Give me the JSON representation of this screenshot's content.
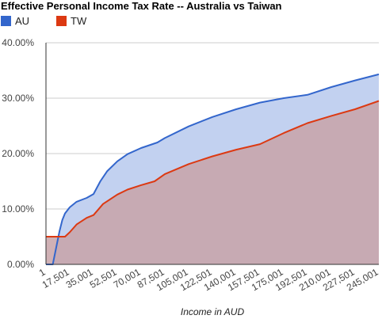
{
  "chart_data": {
    "type": "area",
    "title": "Effective Personal Income Tax Rate -- Australia vs Taiwan",
    "xlabel": "Income in AUD",
    "ylabel": "",
    "ylim": [
      0,
      0.4
    ],
    "yticks": [
      0,
      0.1,
      0.2,
      0.3,
      0.4
    ],
    "ytick_labels": [
      "0.00%",
      "10.00%",
      "20.00%",
      "30.00%",
      "40.00%"
    ],
    "grid": true,
    "legend": "top-left",
    "x": [
      1,
      17501,
      35001,
      52501,
      70001,
      87501,
      105001,
      122501,
      140001,
      157501,
      175001,
      192501,
      210001,
      227501,
      245001
    ],
    "x_tick_labels": [
      "1",
      "17,501",
      "35,001",
      "52,501",
      "70,001",
      "87,501",
      "105,001",
      "122,501",
      "140,001",
      "157,501",
      "175,001",
      "192,501",
      "210,001",
      "227,501",
      "245,001"
    ],
    "xlim": [
      1,
      245001
    ],
    "series": [
      {
        "name": "AU",
        "color": "#3366cc",
        "fill": "#c2d1f0",
        "points": [
          [
            1,
            0
          ],
          [
            5001,
            0
          ],
          [
            10001,
            0.06
          ],
          [
            12001,
            0.08
          ],
          [
            14001,
            0.092
          ],
          [
            17501,
            0.103
          ],
          [
            22501,
            0.113
          ],
          [
            30001,
            0.12
          ],
          [
            35001,
            0.127
          ],
          [
            40001,
            0.15
          ],
          [
            45001,
            0.168
          ],
          [
            52501,
            0.186
          ],
          [
            60001,
            0.199
          ],
          [
            70001,
            0.21
          ],
          [
            82001,
            0.22
          ],
          [
            87501,
            0.228
          ],
          [
            105001,
            0.249
          ],
          [
            122501,
            0.266
          ],
          [
            140001,
            0.28
          ],
          [
            157501,
            0.292
          ],
          [
            175001,
            0.3
          ],
          [
            192501,
            0.306
          ],
          [
            210001,
            0.32
          ],
          [
            227501,
            0.332
          ],
          [
            245001,
            0.343
          ]
        ]
      },
      {
        "name": "TW",
        "color": "#dc3912",
        "fill": "#c8a3a8",
        "points": [
          [
            1,
            0.05
          ],
          [
            10001,
            0.05
          ],
          [
            14001,
            0.05
          ],
          [
            17501,
            0.058
          ],
          [
            22501,
            0.072
          ],
          [
            30001,
            0.084
          ],
          [
            35001,
            0.089
          ],
          [
            42001,
            0.109
          ],
          [
            52501,
            0.126
          ],
          [
            60001,
            0.135
          ],
          [
            70001,
            0.143
          ],
          [
            80001,
            0.15
          ],
          [
            87501,
            0.163
          ],
          [
            105001,
            0.181
          ],
          [
            122501,
            0.195
          ],
          [
            140001,
            0.207
          ],
          [
            157501,
            0.217
          ],
          [
            175001,
            0.237
          ],
          [
            192501,
            0.255
          ],
          [
            210001,
            0.268
          ],
          [
            227501,
            0.28
          ],
          [
            245001,
            0.295
          ]
        ]
      }
    ]
  }
}
